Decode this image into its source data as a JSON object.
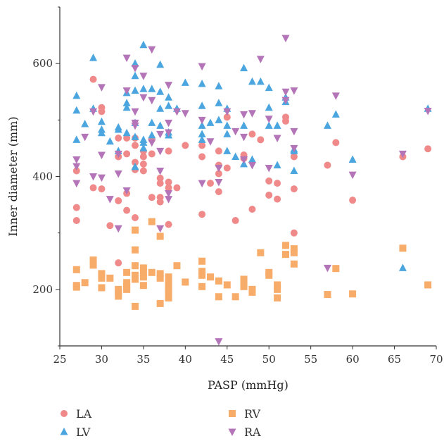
{
  "chart_data": {
    "type": "scatter",
    "xlabel": "PASP (mmHg)",
    "ylabel": "Inner diameter (mm)",
    "xlim": [
      25,
      70
    ],
    "ylim": [
      100,
      700
    ],
    "xticks": [
      25,
      30,
      35,
      40,
      45,
      50,
      55,
      60,
      65,
      70
    ],
    "yticks": [
      200,
      400,
      600
    ],
    "legend_position": "bottom",
    "series": [
      {
        "name": "LA",
        "marker": "circle",
        "color": "#F08A8A",
        "points": [
          [
            27,
            410
          ],
          [
            27,
            345
          ],
          [
            27,
            322
          ],
          [
            29,
            572
          ],
          [
            29,
            380
          ],
          [
            30,
            522
          ],
          [
            30,
            515
          ],
          [
            30,
            378
          ],
          [
            31,
            313
          ],
          [
            32,
            468
          ],
          [
            32,
            435
          ],
          [
            32,
            357
          ],
          [
            32,
            247
          ],
          [
            33,
            468
          ],
          [
            33,
            440
          ],
          [
            33,
            370
          ],
          [
            33,
            340
          ],
          [
            34,
            468
          ],
          [
            34,
            455
          ],
          [
            34,
            425
          ],
          [
            34,
            412
          ],
          [
            34,
            327
          ],
          [
            35,
            445
          ],
          [
            35,
            435
          ],
          [
            35,
            422
          ],
          [
            35,
            410
          ],
          [
            36,
            465
          ],
          [
            36,
            440
          ],
          [
            36,
            363
          ],
          [
            37,
            397
          ],
          [
            37,
            388
          ],
          [
            37,
            363
          ],
          [
            37,
            355
          ],
          [
            38,
            445
          ],
          [
            38,
            390
          ],
          [
            38,
            380
          ],
          [
            38,
            315
          ],
          [
            39,
            380
          ],
          [
            40,
            455
          ],
          [
            42,
            455
          ],
          [
            42,
            435
          ],
          [
            42,
            333
          ],
          [
            43,
            388
          ],
          [
            44,
            445
          ],
          [
            44,
            420
          ],
          [
            44,
            405
          ],
          [
            44,
            373
          ],
          [
            45,
            505
          ],
          [
            45,
            415
          ],
          [
            46,
            322
          ],
          [
            47,
            438
          ],
          [
            47,
            432
          ],
          [
            48,
            475
          ],
          [
            48,
            342
          ],
          [
            49,
            465
          ],
          [
            50,
            392
          ],
          [
            50,
            367
          ],
          [
            51,
            388
          ],
          [
            51,
            360
          ],
          [
            52,
            505
          ],
          [
            52,
            498
          ],
          [
            53,
            435
          ],
          [
            53,
            378
          ],
          [
            53,
            300
          ],
          [
            57,
            420
          ],
          [
            58,
            460
          ],
          [
            60,
            358
          ],
          [
            66,
            435
          ],
          [
            69,
            449
          ]
        ]
      },
      {
        "name": "RV",
        "marker": "square",
        "color": "#F7AC6A",
        "points": [
          [
            27,
            235
          ],
          [
            27,
            207
          ],
          [
            27,
            204
          ],
          [
            28,
            212
          ],
          [
            29,
            252
          ],
          [
            29,
            243
          ],
          [
            30,
            228
          ],
          [
            30,
            220
          ],
          [
            30,
            203
          ],
          [
            31,
            220
          ],
          [
            32,
            200
          ],
          [
            32,
            195
          ],
          [
            32,
            188
          ],
          [
            33,
            230
          ],
          [
            33,
            212
          ],
          [
            33,
            205
          ],
          [
            33,
            200
          ],
          [
            34,
            305
          ],
          [
            34,
            270
          ],
          [
            34,
            242
          ],
          [
            34,
            225
          ],
          [
            34,
            218
          ],
          [
            34,
            170
          ],
          [
            35,
            238
          ],
          [
            35,
            230
          ],
          [
            35,
            222
          ],
          [
            35,
            207
          ],
          [
            36,
            320
          ],
          [
            36,
            230
          ],
          [
            37,
            294
          ],
          [
            37,
            228
          ],
          [
            37,
            220
          ],
          [
            37,
            175
          ],
          [
            38,
            222
          ],
          [
            38,
            210
          ],
          [
            38,
            200
          ],
          [
            38,
            195
          ],
          [
            38,
            185
          ],
          [
            39,
            242
          ],
          [
            40,
            213
          ],
          [
            42,
            250
          ],
          [
            42,
            232
          ],
          [
            42,
            225
          ],
          [
            42,
            205
          ],
          [
            43,
            222
          ],
          [
            44,
            215
          ],
          [
            44,
            187
          ],
          [
            45,
            208
          ],
          [
            46,
            187
          ],
          [
            47,
            218
          ],
          [
            47,
            212
          ],
          [
            47,
            205
          ],
          [
            48,
            200
          ],
          [
            48,
            195
          ],
          [
            49,
            265
          ],
          [
            50,
            230
          ],
          [
            50,
            225
          ],
          [
            51,
            208
          ],
          [
            51,
            200
          ],
          [
            51,
            185
          ],
          [
            52,
            278
          ],
          [
            52,
            262
          ],
          [
            53,
            272
          ],
          [
            53,
            265
          ],
          [
            53,
            245
          ],
          [
            57,
            191
          ],
          [
            58,
            237
          ],
          [
            60,
            192
          ],
          [
            66,
            273
          ],
          [
            69,
            208
          ]
        ]
      },
      {
        "name": "LV",
        "marker": "triangle-up",
        "color": "#4BA6E0",
        "points": [
          [
            27,
            543
          ],
          [
            27,
            517
          ],
          [
            27,
            465
          ],
          [
            28,
            493
          ],
          [
            29,
            610
          ],
          [
            29,
            520
          ],
          [
            30,
            497
          ],
          [
            30,
            483
          ],
          [
            30,
            477
          ],
          [
            31,
            462
          ],
          [
            32,
            487
          ],
          [
            32,
            483
          ],
          [
            32,
            445
          ],
          [
            33,
            548
          ],
          [
            33,
            530
          ],
          [
            33,
            522
          ],
          [
            33,
            477
          ],
          [
            34,
            600
          ],
          [
            34,
            578
          ],
          [
            34,
            552
          ],
          [
            34,
            495
          ],
          [
            34,
            470
          ],
          [
            34,
            417
          ],
          [
            35,
            633
          ],
          [
            35,
            555
          ],
          [
            35,
            465
          ],
          [
            35,
            460
          ],
          [
            35,
            450
          ],
          [
            36,
            555
          ],
          [
            36,
            495
          ],
          [
            36,
            473
          ],
          [
            37,
            598
          ],
          [
            37,
            550
          ],
          [
            37,
            520
          ],
          [
            37,
            490
          ],
          [
            38,
            540
          ],
          [
            38,
            525
          ],
          [
            38,
            478
          ],
          [
            38,
            473
          ],
          [
            39,
            520
          ],
          [
            40,
            566
          ],
          [
            42,
            564
          ],
          [
            42,
            525
          ],
          [
            42,
            490
          ],
          [
            42,
            475
          ],
          [
            42,
            465
          ],
          [
            43,
            495
          ],
          [
            44,
            560
          ],
          [
            44,
            530
          ],
          [
            44,
            500
          ],
          [
            45,
            520
          ],
          [
            45,
            490
          ],
          [
            45,
            475
          ],
          [
            45,
            445
          ],
          [
            46,
            435
          ],
          [
            47,
            592
          ],
          [
            47,
            490
          ],
          [
            47,
            422
          ],
          [
            48,
            568
          ],
          [
            48,
            430
          ],
          [
            49,
            568
          ],
          [
            50,
            557
          ],
          [
            50,
            522
          ],
          [
            50,
            490
          ],
          [
            51,
            490
          ],
          [
            51,
            420
          ],
          [
            52,
            540
          ],
          [
            52,
            532
          ],
          [
            53,
            448
          ],
          [
            53,
            445
          ],
          [
            53,
            410
          ],
          [
            57,
            490
          ],
          [
            58,
            510
          ],
          [
            60,
            430
          ],
          [
            66,
            238
          ],
          [
            69,
            520
          ]
        ]
      },
      {
        "name": "RA",
        "marker": "triangle-down",
        "color": "#B474B8",
        "points": [
          [
            27,
            430
          ],
          [
            27,
            418
          ],
          [
            27,
            388
          ],
          [
            28,
            470
          ],
          [
            29,
            515
          ],
          [
            29,
            400
          ],
          [
            30,
            558
          ],
          [
            30,
            438
          ],
          [
            30,
            398
          ],
          [
            31,
            360
          ],
          [
            32,
            440
          ],
          [
            32,
            405
          ],
          [
            32,
            308
          ],
          [
            33,
            610
          ],
          [
            33,
            552
          ],
          [
            33,
            375
          ],
          [
            34,
            592
          ],
          [
            34,
            515
          ],
          [
            34,
            495
          ],
          [
            34,
            490
          ],
          [
            35,
            578
          ],
          [
            35,
            540
          ],
          [
            36,
            625
          ],
          [
            36,
            535
          ],
          [
            36,
            460
          ],
          [
            37,
            475
          ],
          [
            37,
            445
          ],
          [
            37,
            410
          ],
          [
            37,
            308
          ],
          [
            38,
            562
          ],
          [
            38,
            495
          ],
          [
            38,
            478
          ],
          [
            38,
            370
          ],
          [
            38,
            360
          ],
          [
            39,
            515
          ],
          [
            40,
            512
          ],
          [
            42,
            595
          ],
          [
            42,
            500
          ],
          [
            42,
            388
          ],
          [
            43,
            462
          ],
          [
            44,
            415
          ],
          [
            44,
            390
          ],
          [
            44,
            108
          ],
          [
            45,
            515
          ],
          [
            46,
            480
          ],
          [
            47,
            510
          ],
          [
            47,
            470
          ],
          [
            47,
            430
          ],
          [
            48,
            512
          ],
          [
            48,
            420
          ],
          [
            49,
            608
          ],
          [
            50,
            502
          ],
          [
            50,
            415
          ],
          [
            51,
            468
          ],
          [
            52,
            645
          ],
          [
            52,
            550
          ],
          [
            52,
            535
          ],
          [
            53,
            552
          ],
          [
            53,
            480
          ],
          [
            53,
            450
          ],
          [
            57,
            238
          ],
          [
            58,
            543
          ],
          [
            60,
            403
          ],
          [
            66,
            440
          ],
          [
            69,
            516
          ]
        ]
      }
    ]
  }
}
